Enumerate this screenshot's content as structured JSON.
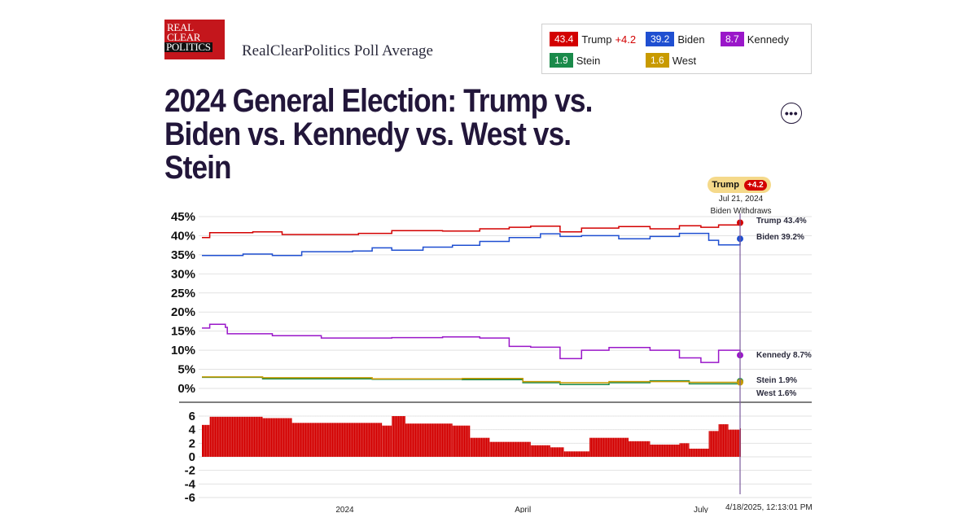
{
  "header": {
    "logo_lines": [
      "REAL",
      "CLEAR",
      "POLITICS"
    ],
    "site_title": "RealClearPolitics Poll Average",
    "title": "2024 General Election: Trump vs. Biden vs. Kennedy vs. West vs. Stein"
  },
  "legend": [
    {
      "name": "Trump",
      "value": "43.4",
      "spread": "+4.2",
      "color": "#d30000"
    },
    {
      "name": "Biden",
      "value": "39.2",
      "spread": "",
      "color": "#1f4fd1"
    },
    {
      "name": "Kennedy",
      "value": "8.7",
      "spread": "",
      "color": "#9a17c9"
    },
    {
      "name": "Stein",
      "value": "1.9",
      "spread": "",
      "color": "#1a8a4a"
    },
    {
      "name": "West",
      "value": "1.6",
      "spread": "",
      "color": "#c89a00"
    }
  ],
  "menu_icon": "more-horizontal-icon",
  "tooltip": {
    "leader": "Trump",
    "spread": "+4.2",
    "date": "Jul 21, 2024",
    "event": "Biden Withdraws"
  },
  "timestamp": "4/18/2025, 12:13:01 PM",
  "chart_data": [
    {
      "type": "line",
      "title": "",
      "x_start": "2023-10-20",
      "x_end": "2024-07-21",
      "x_ticks": [
        {
          "label": "2024",
          "date": "2024-01-01"
        },
        {
          "label": "April",
          "date": "2024-04-01"
        },
        {
          "label": "July",
          "date": "2024-07-01"
        }
      ],
      "y_ticks": [
        "45%",
        "40%",
        "35%",
        "30%",
        "25%",
        "20%",
        "15%",
        "10%",
        "5%",
        "0%"
      ],
      "ylim": [
        0,
        45
      ],
      "grid": true,
      "legend_position": "top-right",
      "end_labels": [
        {
          "text": "Trump 43.4%",
          "series": "Trump"
        },
        {
          "text": "Biden 39.2%",
          "series": "Biden"
        },
        {
          "text": "Kennedy 8.7%",
          "series": "Kennedy"
        },
        {
          "text": "Stein 1.9%",
          "series": "Stein"
        },
        {
          "text": "West 1.6%",
          "series": "West"
        }
      ],
      "series": [
        {
          "name": "Trump",
          "color": "#d30000",
          "points": [
            [
              "2023-10-20",
              39.5
            ],
            [
              "2023-10-24",
              40.8
            ],
            [
              "2023-11-15",
              41.0
            ],
            [
              "2023-11-30",
              40.3
            ],
            [
              "2024-01-08",
              40.6
            ],
            [
              "2024-01-25",
              41.3
            ],
            [
              "2024-02-20",
              41.2
            ],
            [
              "2024-03-10",
              41.8
            ],
            [
              "2024-03-25",
              42.2
            ],
            [
              "2024-04-05",
              42.5
            ],
            [
              "2024-04-20",
              41.0
            ],
            [
              "2024-05-01",
              42.0
            ],
            [
              "2024-05-20",
              42.4
            ],
            [
              "2024-06-05",
              41.8
            ],
            [
              "2024-06-20",
              42.6
            ],
            [
              "2024-07-01",
              42.2
            ],
            [
              "2024-07-10",
              42.8
            ],
            [
              "2024-07-21",
              43.4
            ]
          ]
        },
        {
          "name": "Biden",
          "color": "#1f4fd1",
          "points": [
            [
              "2023-10-20",
              34.8
            ],
            [
              "2023-11-10",
              35.2
            ],
            [
              "2023-11-25",
              34.8
            ],
            [
              "2023-12-10",
              35.8
            ],
            [
              "2024-01-05",
              36.0
            ],
            [
              "2024-01-15",
              36.8
            ],
            [
              "2024-01-25",
              36.2
            ],
            [
              "2024-02-10",
              37.0
            ],
            [
              "2024-02-25",
              37.5
            ],
            [
              "2024-03-10",
              38.5
            ],
            [
              "2024-03-25",
              39.5
            ],
            [
              "2024-04-10",
              40.5
            ],
            [
              "2024-04-20",
              39.8
            ],
            [
              "2024-05-01",
              40.0
            ],
            [
              "2024-05-20",
              39.2
            ],
            [
              "2024-06-05",
              39.8
            ],
            [
              "2024-06-20",
              40.6
            ],
            [
              "2024-07-05",
              38.8
            ],
            [
              "2024-07-10",
              37.6
            ],
            [
              "2024-07-21",
              39.2
            ]
          ]
        },
        {
          "name": "Kennedy",
          "color": "#9a17c9",
          "points": [
            [
              "2023-10-20",
              15.8
            ],
            [
              "2023-10-24",
              16.8
            ],
            [
              "2023-11-01",
              16.0
            ],
            [
              "2023-11-02",
              14.3
            ],
            [
              "2023-11-25",
              13.8
            ],
            [
              "2023-12-20",
              13.2
            ],
            [
              "2024-01-25",
              13.3
            ],
            [
              "2024-02-20",
              13.5
            ],
            [
              "2024-03-10",
              13.2
            ],
            [
              "2024-03-25",
              11.0
            ],
            [
              "2024-04-05",
              10.8
            ],
            [
              "2024-04-20",
              7.8
            ],
            [
              "2024-05-01",
              10.0
            ],
            [
              "2024-05-15",
              10.7
            ],
            [
              "2024-06-05",
              10.0
            ],
            [
              "2024-06-20",
              8.0
            ],
            [
              "2024-07-01",
              6.8
            ],
            [
              "2024-07-10",
              10.0
            ],
            [
              "2024-07-21",
              8.7
            ]
          ]
        },
        {
          "name": "Stein",
          "color": "#1a8a4a",
          "points": [
            [
              "2023-10-20",
              2.9
            ],
            [
              "2023-11-20",
              2.5
            ],
            [
              "2024-01-15",
              2.4
            ],
            [
              "2024-03-01",
              2.3
            ],
            [
              "2024-04-01",
              1.5
            ],
            [
              "2024-04-20",
              1.0
            ],
            [
              "2024-05-15",
              1.5
            ],
            [
              "2024-06-05",
              2.0
            ],
            [
              "2024-06-25",
              1.2
            ],
            [
              "2024-07-21",
              1.9
            ]
          ]
        },
        {
          "name": "West",
          "color": "#c89a00",
          "points": [
            [
              "2023-10-20",
              3.0
            ],
            [
              "2023-11-20",
              2.8
            ],
            [
              "2024-01-15",
              2.5
            ],
            [
              "2024-03-01",
              2.6
            ],
            [
              "2024-04-01",
              1.8
            ],
            [
              "2024-04-20",
              1.5
            ],
            [
              "2024-05-15",
              1.8
            ],
            [
              "2024-06-05",
              1.8
            ],
            [
              "2024-06-25",
              1.6
            ],
            [
              "2024-07-21",
              1.6
            ]
          ]
        }
      ]
    },
    {
      "type": "bar",
      "title": "",
      "series_name": "Trump spread",
      "color": "#d30000",
      "y_ticks": [
        "6",
        "4",
        "2",
        "0",
        "-2",
        "-4",
        "-6"
      ],
      "ylim": [
        -6,
        6
      ],
      "points": [
        [
          "2023-10-20",
          4.7
        ],
        [
          "2023-10-24",
          5.9
        ],
        [
          "2023-11-20",
          5.7
        ],
        [
          "2023-12-05",
          5.0
        ],
        [
          "2024-01-20",
          4.6
        ],
        [
          "2024-01-25",
          6.0
        ],
        [
          "2024-02-01",
          4.9
        ],
        [
          "2024-02-25",
          4.6
        ],
        [
          "2024-03-05",
          2.8
        ],
        [
          "2024-03-15",
          2.2
        ],
        [
          "2024-04-05",
          1.7
        ],
        [
          "2024-04-15",
          1.4
        ],
        [
          "2024-04-22",
          0.8
        ],
        [
          "2024-05-05",
          2.8
        ],
        [
          "2024-05-25",
          2.3
        ],
        [
          "2024-06-05",
          1.8
        ],
        [
          "2024-06-20",
          2.0
        ],
        [
          "2024-06-25",
          1.2
        ],
        [
          "2024-07-05",
          3.8
        ],
        [
          "2024-07-10",
          4.8
        ],
        [
          "2024-07-15",
          4.0
        ],
        [
          "2024-07-21",
          4.2
        ]
      ]
    }
  ]
}
